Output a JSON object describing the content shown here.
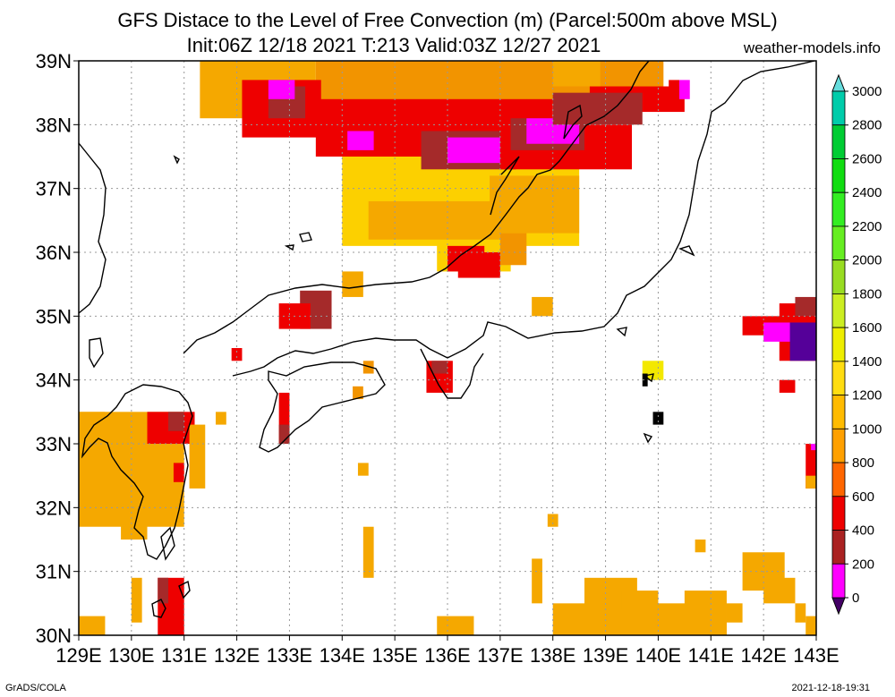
{
  "title_line1": "GFS Distace to the Level of Free Convection (m) (Parcel:500m above MSL)",
  "title_line2": "Init:06Z 12/18 2021 T:213 Valid:03Z 12/27 2021",
  "site": "weather-models.info",
  "footer_left": "GrADS/COLA",
  "footer_right": "2021-12-18-19:31",
  "map": {
    "lon_ticks": [
      "129E",
      "130E",
      "131E",
      "132E",
      "133E",
      "134E",
      "135E",
      "136E",
      "137E",
      "138E",
      "139E",
      "140E",
      "141E",
      "142E",
      "143E"
    ],
    "lat_ticks": [
      "39N",
      "38N",
      "37N",
      "36N",
      "35N",
      "34N",
      "33N",
      "32N",
      "31N",
      "30N"
    ],
    "extent": {
      "lon_min": 129,
      "lon_max": 143,
      "lat_min": 30,
      "lat_max": 39
    },
    "grid": "dotted"
  },
  "colorbar": {
    "labels": [
      "3000",
      "2800",
      "2600",
      "2400",
      "2200",
      "2000",
      "1800",
      "1600",
      "1400",
      "1200",
      "1000",
      "800",
      "600",
      "400",
      "200",
      "0"
    ],
    "colors": [
      "#00eedd",
      "#00ccaa",
      "#00cc33",
      "#11dd11",
      "#33ee22",
      "#66ee22",
      "#99dd22",
      "#ccee22",
      "#eeee00",
      "#ffdd11",
      "#ffbb00",
      "#ffa000",
      "#ff6600",
      "#ee0000",
      "#aa2222",
      "#ff00ff",
      "#550099"
    ],
    "arrows": {
      "top": "#66dddd",
      "bottom": "#440066"
    }
  },
  "palette": {
    "c1000": "#f5a800",
    "c1200": "#fcd000",
    "c1400": "#f3e800",
    "c800": "#f29400",
    "c600": "#ee0000",
    "c400": "#a52a2a",
    "c200": "#ff00ff",
    "c0": "#550099",
    "green": "#99dd22"
  }
}
